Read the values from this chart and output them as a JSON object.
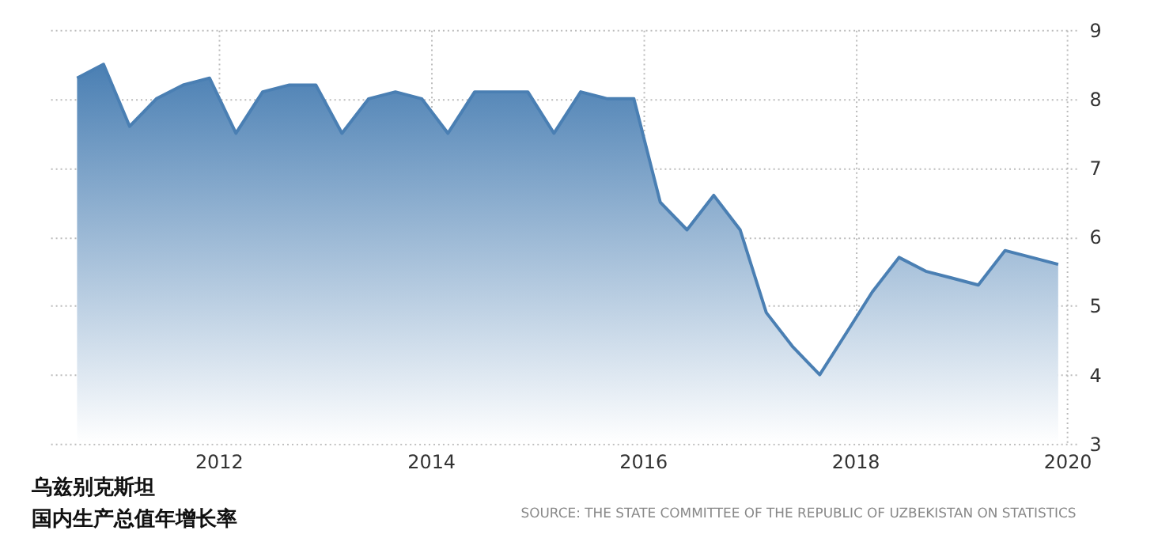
{
  "chart_data": {
    "type": "area",
    "title": "乌兹别克斯坦",
    "subtitle": "国内生产总值年增长率",
    "annotations": [
      "SOURCE: THE STATE COMMITTEE OF THE REPUBLIC OF UZBEKISTAN ON STATISTICS"
    ],
    "x": [
      "2010-09",
      "2010-12",
      "2011-03",
      "2011-06",
      "2011-09",
      "2011-12",
      "2012-03",
      "2012-06",
      "2012-09",
      "2012-12",
      "2013-03",
      "2013-06",
      "2013-09",
      "2013-12",
      "2014-03",
      "2014-06",
      "2014-09",
      "2014-12",
      "2015-03",
      "2015-06",
      "2015-09",
      "2015-12",
      "2016-03",
      "2016-06",
      "2016-09",
      "2016-12",
      "2017-03",
      "2017-06",
      "2017-09",
      "2017-12",
      "2018-03",
      "2018-06",
      "2018-09",
      "2018-12",
      "2019-03",
      "2019-06",
      "2019-09",
      "2019-12"
    ],
    "series": [
      {
        "color": "#4a7fb3",
        "values": [
          8.3,
          8.5,
          7.6,
          8.0,
          8.2,
          8.3,
          7.5,
          8.1,
          8.2,
          8.2,
          7.5,
          8.0,
          8.1,
          8.0,
          7.5,
          8.1,
          8.1,
          8.1,
          7.5,
          8.1,
          8.0,
          8.0,
          6.5,
          6.1,
          6.6,
          6.1,
          4.9,
          4.4,
          4.0,
          4.6,
          5.2,
          5.7,
          5.5,
          5.4,
          5.3,
          5.8,
          5.7,
          5.6
        ]
      }
    ],
    "xlim": [
      "2010-06",
      "2020-02"
    ],
    "xticks": [
      "2012",
      "2014",
      "2016",
      "2018",
      "2020"
    ],
    "ylim": [
      3,
      9
    ],
    "yticks": [
      3,
      4,
      5,
      6,
      7,
      8,
      9
    ],
    "grid": true
  }
}
